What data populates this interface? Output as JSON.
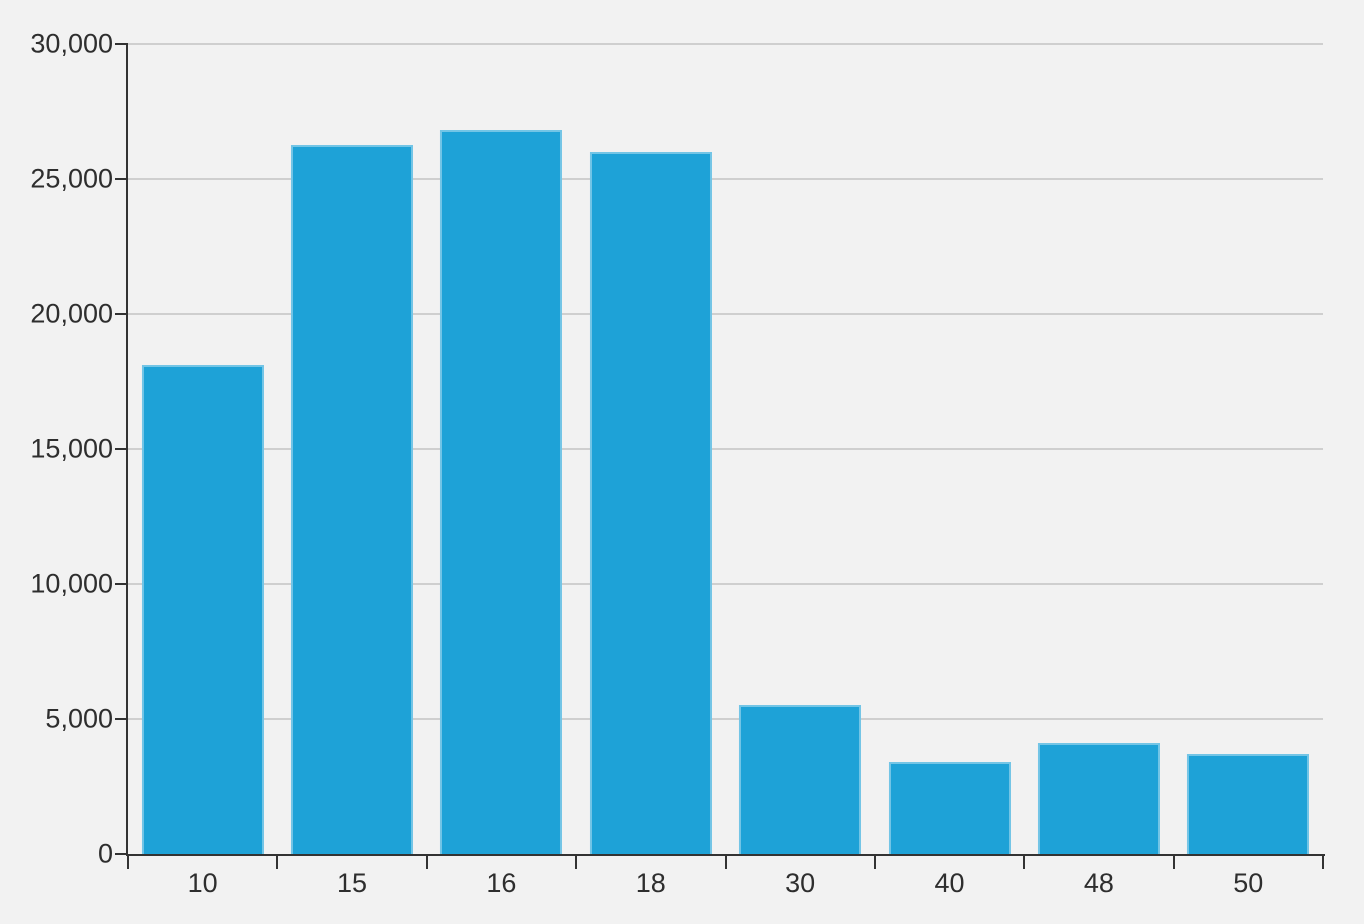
{
  "chart_data": {
    "type": "bar",
    "title": "",
    "xlabel": "",
    "ylabel": "",
    "categories": [
      "10",
      "15",
      "16",
      "18",
      "30",
      "40",
      "48",
      "50"
    ],
    "values": [
      18100,
      26250,
      26800,
      26000,
      5500,
      3400,
      4100,
      3700
    ],
    "ylim": [
      0,
      30000
    ],
    "y_ticks": [
      0,
      5000,
      10000,
      15000,
      20000,
      25000,
      30000
    ],
    "y_tick_labels": [
      "0",
      "5,000",
      "10,000",
      "15,000",
      "20,000",
      "25,000",
      "30,000"
    ],
    "grid": "horizontal-gridlines-on",
    "legend": "none",
    "colors": {
      "bar": "#1EA2D7",
      "bar_edge": "rgba(255,255,255,0.38)",
      "background": "#F2F2F2",
      "gridline": "#CFCFCF",
      "axis": "#333333",
      "tick_label": "#2E2E2E"
    }
  }
}
